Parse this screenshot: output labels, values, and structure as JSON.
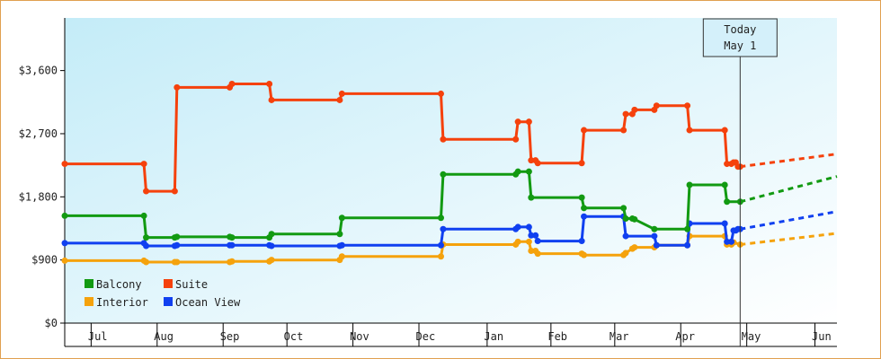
{
  "chart_data": {
    "type": "line",
    "title": "",
    "xlabel": "",
    "ylabel": "",
    "ylim": [
      0,
      4350
    ],
    "y_ticks": [
      0,
      900,
      1800,
      2700,
      3600
    ],
    "y_tick_labels": [
      "$0",
      "$900",
      "$1,800",
      "$2,700",
      "$3,600"
    ],
    "x_range": [
      0,
      351
    ],
    "x_tick_labels": [
      {
        "label": "Jul",
        "day": 15
      },
      {
        "label": "Aug",
        "day": 45
      },
      {
        "label": "Sep",
        "day": 75
      },
      {
        "label": "Oct",
        "day": 104
      },
      {
        "label": "Nov",
        "day": 134
      },
      {
        "label": "Dec",
        "day": 164
      },
      {
        "label": "Jan",
        "day": 195
      },
      {
        "label": "Feb",
        "day": 224
      },
      {
        "label": "Mar",
        "day": 252
      },
      {
        "label": "Apr",
        "day": 282
      },
      {
        "label": "May",
        "day": 312
      },
      {
        "label": "Jun",
        "day": 344
      }
    ],
    "x_boundaries": [
      12,
      42,
      72,
      101,
      131,
      161,
      192,
      221,
      250,
      280,
      310,
      341
    ],
    "grid": false,
    "background": "gradient light-blue",
    "today_marker": {
      "line1": "Today",
      "line2": "May 1",
      "day": 307
    },
    "legend": {
      "placement": "bottom-left",
      "entries": [
        {
          "name": "Balcony",
          "color": "#129a12"
        },
        {
          "name": "Suite",
          "color": "#f5410c"
        },
        {
          "name": "Interior",
          "color": "#f5a20c"
        },
        {
          "name": "Ocean View",
          "color": "#1040f0"
        }
      ]
    },
    "series": [
      {
        "name": "Suite",
        "color": "#f5410c",
        "points": [
          [
            0,
            2270
          ],
          [
            36,
            2270
          ],
          [
            37,
            1880
          ],
          [
            50,
            1880
          ],
          [
            51,
            3360
          ],
          [
            75,
            3360
          ],
          [
            76,
            3410
          ],
          [
            93,
            3410
          ],
          [
            94,
            3180
          ],
          [
            125,
            3180
          ],
          [
            126,
            3270
          ],
          [
            171,
            3270
          ],
          [
            172,
            2620
          ],
          [
            205,
            2620
          ],
          [
            206,
            2870
          ],
          [
            211,
            2870
          ],
          [
            212,
            2320
          ],
          [
            214,
            2320
          ],
          [
            215,
            2280
          ],
          [
            235,
            2280
          ],
          [
            236,
            2750
          ],
          [
            254,
            2750
          ],
          [
            255,
            2980
          ],
          [
            258,
            2980
          ],
          [
            259,
            3040
          ],
          [
            268,
            3040
          ],
          [
            269,
            3100
          ],
          [
            283,
            3100
          ],
          [
            284,
            2750
          ],
          [
            300,
            2750
          ],
          [
            301,
            2270
          ],
          [
            303,
            2270
          ],
          [
            304,
            2290
          ],
          [
            305,
            2290
          ],
          [
            306,
            2230
          ],
          [
            307,
            2230
          ]
        ],
        "projection": [
          [
            307,
            2230
          ],
          [
            351,
            2410
          ]
        ]
      },
      {
        "name": "Balcony",
        "color": "#129a12",
        "points": [
          [
            0,
            1530
          ],
          [
            36,
            1530
          ],
          [
            37,
            1220
          ],
          [
            50,
            1220
          ],
          [
            51,
            1230
          ],
          [
            75,
            1230
          ],
          [
            76,
            1220
          ],
          [
            93,
            1220
          ],
          [
            94,
            1270
          ],
          [
            125,
            1270
          ],
          [
            126,
            1500
          ],
          [
            171,
            1500
          ],
          [
            172,
            2120
          ],
          [
            205,
            2120
          ],
          [
            206,
            2160
          ],
          [
            211,
            2160
          ],
          [
            212,
            1790
          ],
          [
            235,
            1790
          ],
          [
            236,
            1640
          ],
          [
            254,
            1640
          ],
          [
            255,
            1490
          ],
          [
            258,
            1490
          ],
          [
            259,
            1480
          ],
          [
            268,
            1340
          ],
          [
            283,
            1340
          ],
          [
            284,
            1970
          ],
          [
            300,
            1970
          ],
          [
            301,
            1730
          ],
          [
            307,
            1730
          ]
        ],
        "projection": [
          [
            307,
            1730
          ],
          [
            351,
            2090
          ]
        ]
      },
      {
        "name": "Ocean View",
        "color": "#1040f0",
        "points": [
          [
            0,
            1140
          ],
          [
            36,
            1140
          ],
          [
            37,
            1100
          ],
          [
            50,
            1100
          ],
          [
            51,
            1110
          ],
          [
            75,
            1110
          ],
          [
            76,
            1110
          ],
          [
            93,
            1110
          ],
          [
            94,
            1100
          ],
          [
            125,
            1100
          ],
          [
            126,
            1110
          ],
          [
            171,
            1110
          ],
          [
            172,
            1340
          ],
          [
            205,
            1340
          ],
          [
            206,
            1370
          ],
          [
            211,
            1370
          ],
          [
            212,
            1250
          ],
          [
            214,
            1250
          ],
          [
            215,
            1170
          ],
          [
            235,
            1170
          ],
          [
            236,
            1520
          ],
          [
            254,
            1520
          ],
          [
            255,
            1240
          ],
          [
            268,
            1240
          ],
          [
            269,
            1110
          ],
          [
            283,
            1110
          ],
          [
            284,
            1420
          ],
          [
            300,
            1420
          ],
          [
            301,
            1160
          ],
          [
            303,
            1160
          ],
          [
            304,
            1320
          ],
          [
            305,
            1320
          ],
          [
            306,
            1340
          ],
          [
            307,
            1340
          ]
        ],
        "projection": [
          [
            307,
            1340
          ],
          [
            351,
            1590
          ]
        ]
      },
      {
        "name": "Interior",
        "color": "#f5a20c",
        "points": [
          [
            0,
            890
          ],
          [
            36,
            890
          ],
          [
            37,
            870
          ],
          [
            50,
            870
          ],
          [
            51,
            870
          ],
          [
            75,
            870
          ],
          [
            76,
            880
          ],
          [
            93,
            880
          ],
          [
            94,
            900
          ],
          [
            125,
            900
          ],
          [
            126,
            950
          ],
          [
            171,
            950
          ],
          [
            172,
            1120
          ],
          [
            205,
            1120
          ],
          [
            206,
            1160
          ],
          [
            211,
            1160
          ],
          [
            212,
            1030
          ],
          [
            214,
            1030
          ],
          [
            215,
            990
          ],
          [
            235,
            990
          ],
          [
            236,
            970
          ],
          [
            254,
            970
          ],
          [
            255,
            1000
          ],
          [
            258,
            1060
          ],
          [
            259,
            1080
          ],
          [
            268,
            1080
          ],
          [
            269,
            1110
          ],
          [
            283,
            1110
          ],
          [
            284,
            1240
          ],
          [
            300,
            1240
          ],
          [
            301,
            1120
          ],
          [
            303,
            1120
          ],
          [
            304,
            1150
          ],
          [
            307,
            1120
          ]
        ],
        "projection": [
          [
            307,
            1120
          ],
          [
            351,
            1280
          ]
        ]
      }
    ]
  }
}
